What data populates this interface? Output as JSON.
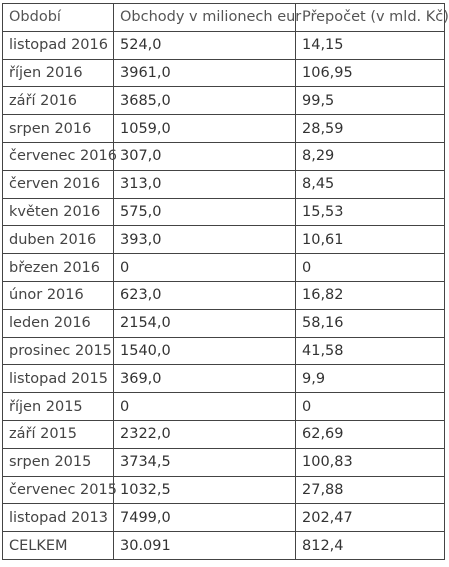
{
  "table": {
    "headers": [
      "Období",
      "Obchody v milionech eur",
      "Přepočet (v mld. Kč)"
    ],
    "rows": [
      [
        "listopad 2016",
        "524,0",
        "14,15"
      ],
      [
        "říjen 2016",
        "3961,0",
        "106,95"
      ],
      [
        "září 2016",
        "3685,0",
        "99,5"
      ],
      [
        "srpen 2016",
        "1059,0",
        "28,59"
      ],
      [
        "červenec 2016",
        "307,0",
        "8,29"
      ],
      [
        "červen 2016",
        "313,0",
        "8,45"
      ],
      [
        "květen 2016",
        "575,0",
        "15,53"
      ],
      [
        "duben 2016",
        "393,0",
        "10,61"
      ],
      [
        "březen 2016",
        "0",
        "0"
      ],
      [
        "únor 2016",
        "623,0",
        "16,82"
      ],
      [
        "leden 2016",
        "2154,0",
        "58,16"
      ],
      [
        "prosinec 2015",
        "1540,0",
        "41,58"
      ],
      [
        "listopad 2015",
        "369,0",
        "9,9"
      ],
      [
        "říjen 2015",
        "0",
        "0"
      ],
      [
        "září 2015",
        "2322,0",
        "62,69"
      ],
      [
        "srpen 2015",
        "3734,5",
        "100,83"
      ],
      [
        "červenec 2015",
        "1032,5",
        "27,88"
      ],
      [
        "listopad 2013",
        "7499,0",
        "202,47"
      ],
      [
        "CELKEM",
        "30.091",
        "812,4"
      ]
    ]
  }
}
